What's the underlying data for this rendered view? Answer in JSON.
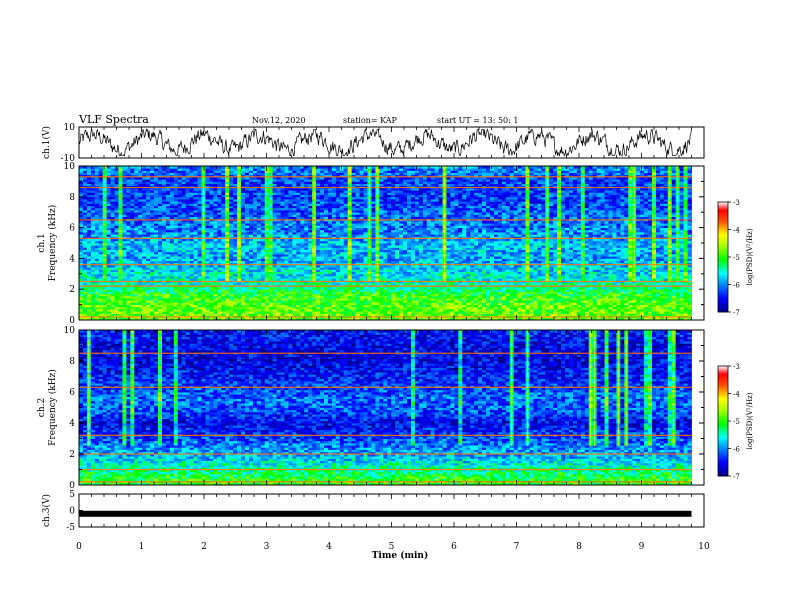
{
  "header": {
    "title": "VLF Spectra",
    "date": "Nov.12, 2020",
    "station": "station= KAP",
    "start_ut": "start  UT =   13: 50: 1"
  },
  "colorbar": {
    "label": "log(PSD)(V²/Hz)",
    "ticks": [
      "-3",
      "-4",
      "-5",
      "-6",
      "-7"
    ],
    "colors": [
      "#ffffff",
      "#ff0000",
      "#ffff00",
      "#00ff00",
      "#00ffff",
      "#0000ff",
      "#00008b"
    ]
  },
  "chart_data": [
    {
      "type": "line",
      "name": "ch1-waveform",
      "ylabel": "ch.1(V)",
      "ylim": [
        -10,
        10
      ],
      "ytick_labels": [
        "10",
        "-10"
      ],
      "xlim": [
        0,
        10
      ],
      "description_values": "noisy waveform oscillating roughly between -8 and 8 V over 0 to 9.8 min"
    },
    {
      "type": "heatmap",
      "name": "ch1-spectrogram",
      "ylabel": "ch.1\nFrequency (kHz)",
      "ylim": [
        0,
        10
      ],
      "ytick_labels": [
        "0",
        "2",
        "4",
        "6",
        "8",
        "10"
      ],
      "xlim": [
        0,
        10
      ],
      "x_data_end": 9.8,
      "band_levels": [
        {
          "f": 0.3,
          "level": -4.8
        },
        {
          "f": 1.0,
          "level": -4.9
        },
        {
          "f": 1.6,
          "level": -5.0
        },
        {
          "f": 2.0,
          "level": -5.3
        },
        {
          "f": 2.6,
          "level": -5.6
        },
        {
          "f": 3.2,
          "level": -5.7
        },
        {
          "f": 4.0,
          "level": -5.9
        },
        {
          "f": 4.8,
          "level": -5.8
        },
        {
          "f": 5.6,
          "level": -6.0
        },
        {
          "f": 6.4,
          "level": -6.1
        },
        {
          "f": 7.2,
          "level": -6.2
        },
        {
          "f": 8.0,
          "level": -6.3
        },
        {
          "f": 9.0,
          "level": -6.3
        },
        {
          "f": 10.0,
          "level": -6.0
        }
      ],
      "strong_lines_khz": [
        0.2,
        2.2,
        2.5,
        3.6,
        5.3,
        6.5,
        8.6,
        9.3
      ]
    },
    {
      "type": "heatmap",
      "name": "ch2-spectrogram",
      "ylabel": "ch.2\nFrequency (kHz)",
      "ylim": [
        0,
        10
      ],
      "ytick_labels": [
        "0",
        "2",
        "4",
        "6",
        "8",
        "10"
      ],
      "xlim": [
        0,
        10
      ],
      "x_data_end": 9.8,
      "band_levels": [
        {
          "f": 0.3,
          "level": -5.0
        },
        {
          "f": 1.0,
          "level": -5.4
        },
        {
          "f": 1.8,
          "level": -5.8
        },
        {
          "f": 2.4,
          "level": -6.0
        },
        {
          "f": 3.2,
          "level": -6.3
        },
        {
          "f": 4.0,
          "level": -6.6
        },
        {
          "f": 4.8,
          "level": -6.2
        },
        {
          "f": 5.6,
          "level": -6.1
        },
        {
          "f": 6.4,
          "level": -6.3
        },
        {
          "f": 7.2,
          "level": -6.5
        },
        {
          "f": 8.0,
          "level": -6.6
        },
        {
          "f": 9.0,
          "level": -6.6
        },
        {
          "f": 10.0,
          "level": -6.4
        }
      ],
      "strong_lines_khz": [
        0.2,
        1.0,
        2.0,
        3.2,
        6.3,
        8.5
      ]
    },
    {
      "type": "line",
      "name": "ch3-signal",
      "ylabel": "ch.3(V)",
      "ylim": [
        -5,
        5
      ],
      "ytick_labels": [
        "5",
        "0",
        "-5"
      ],
      "xlim": [
        0,
        10
      ],
      "value_constant": -1,
      "x_data_end": 9.8
    }
  ],
  "xaxis": {
    "label": "Time  (min)",
    "ticks": [
      "0",
      "1",
      "2",
      "3",
      "4",
      "5",
      "6",
      "7",
      "8",
      "9",
      "10"
    ]
  }
}
